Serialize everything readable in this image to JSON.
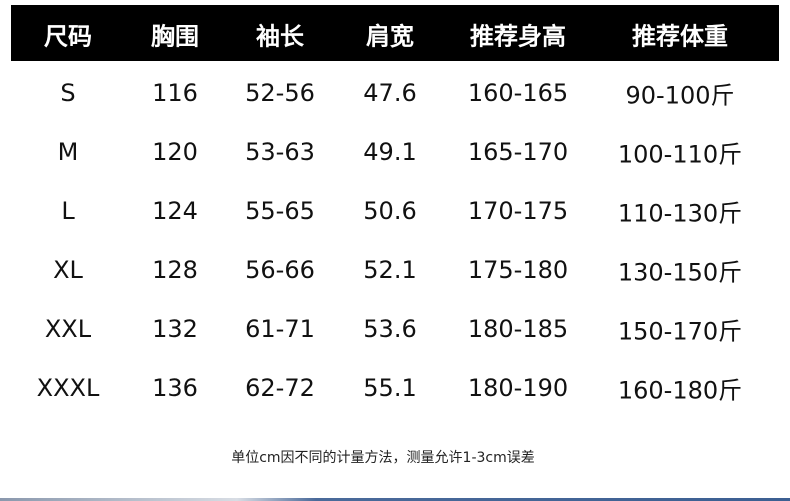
{
  "headers": [
    "尺码",
    "胸围",
    "袖长",
    "肩宽",
    "推荐身高",
    "推荐体重"
  ],
  "rows": [
    [
      "S",
      "116",
      "52-56",
      "47.6",
      "160-165",
      "90-100斤"
    ],
    [
      "M",
      "120",
      "53-63",
      "49.1",
      "165-170",
      "100-110斤"
    ],
    [
      "L",
      "124",
      "55-65",
      "50.6",
      "170-175",
      "110-130斤"
    ],
    [
      "XL",
      "128",
      "56-66",
      "52.1",
      "175-180",
      "130-150斤"
    ],
    [
      "XXL",
      "132",
      "61-71",
      "53.6",
      "180-185",
      "150-170斤"
    ],
    [
      "XXXL",
      "136",
      "62-72",
      "55.1",
      "180-190",
      "160-180斤"
    ]
  ],
  "note": "单位cm因不同的计量方法，测量允许1-3cm误差",
  "colors": {
    "header_bg": "#000000",
    "header_text": "#ffffff",
    "text": "#111111"
  }
}
